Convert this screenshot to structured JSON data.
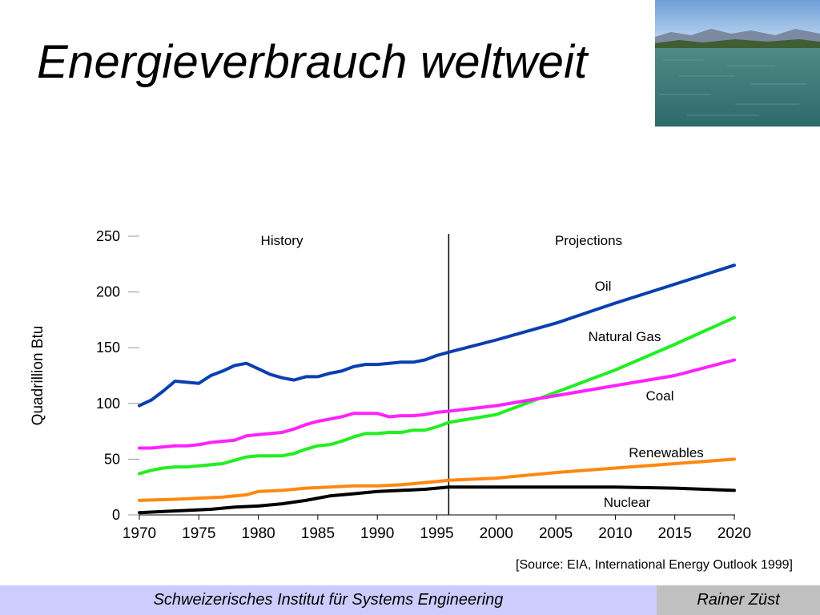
{
  "slide": {
    "title": "Energieverbrauch weltweit"
  },
  "photo": {
    "icon": "lake-landscape-photo"
  },
  "source": "[Source:  EIA, International Energy Outlook 1999]",
  "footer": {
    "left": "Schweizerisches Institut für Systems Engineering",
    "right": "Rainer Züst"
  },
  "chart_data": {
    "type": "line",
    "title": "",
    "xlabel": "",
    "ylabel": "Quadrillion Btu",
    "xlim": [
      1970,
      2020
    ],
    "ylim": [
      0,
      250
    ],
    "x_ticks": [
      1970,
      1975,
      1980,
      1985,
      1990,
      1995,
      2000,
      2005,
      2010,
      2015,
      2020
    ],
    "y_ticks": [
      0,
      50,
      100,
      150,
      200,
      250
    ],
    "grid": false,
    "divider_year": 1996,
    "region_labels": {
      "history": "History",
      "projections": "Projections"
    },
    "series": [
      {
        "name": "Oil",
        "color": "#0a3fb0",
        "x": [
          1970,
          1971,
          1972,
          1973,
          1974,
          1975,
          1976,
          1977,
          1978,
          1979,
          1980,
          1981,
          1982,
          1983,
          1984,
          1985,
          1986,
          1987,
          1988,
          1989,
          1990,
          1991,
          1992,
          1993,
          1994,
          1995,
          1996,
          2000,
          2005,
          2010,
          2015,
          2020
        ],
        "y": [
          98,
          103,
          111,
          120,
          119,
          118,
          125,
          129,
          134,
          136,
          131,
          126,
          123,
          121,
          124,
          124,
          127,
          129,
          133,
          135,
          135,
          136,
          137,
          137,
          139,
          143,
          146,
          157,
          172,
          190,
          207,
          224
        ]
      },
      {
        "name": "Natural Gas",
        "color": "#22ee22",
        "x": [
          1970,
          1971,
          1972,
          1973,
          1974,
          1975,
          1976,
          1977,
          1978,
          1979,
          1980,
          1981,
          1982,
          1983,
          1984,
          1985,
          1986,
          1987,
          1988,
          1989,
          1990,
          1991,
          1992,
          1993,
          1994,
          1995,
          1996,
          2000,
          2005,
          2010,
          2015,
          2020
        ],
        "y": [
          37,
          40,
          42,
          43,
          43,
          44,
          45,
          46,
          49,
          52,
          53,
          53,
          53,
          55,
          59,
          62,
          63,
          66,
          70,
          73,
          73,
          74,
          74,
          76,
          76,
          79,
          83,
          90,
          110,
          130,
          153,
          177
        ]
      },
      {
        "name": "Coal",
        "color": "#ff22ff",
        "x": [
          1970,
          1971,
          1972,
          1973,
          1974,
          1975,
          1976,
          1977,
          1978,
          1979,
          1980,
          1981,
          1982,
          1983,
          1984,
          1985,
          1986,
          1987,
          1988,
          1989,
          1990,
          1991,
          1992,
          1993,
          1994,
          1995,
          1996,
          2000,
          2005,
          2010,
          2015,
          2020
        ],
        "y": [
          60,
          60,
          61,
          62,
          62,
          63,
          65,
          66,
          67,
          71,
          72,
          73,
          74,
          77,
          81,
          84,
          86,
          88,
          91,
          91,
          91,
          88,
          89,
          89,
          90,
          92,
          93,
          98,
          107,
          116,
          125,
          139
        ]
      },
      {
        "name": "Renewables",
        "color": "#ff8811",
        "x": [
          1970,
          1973,
          1975,
          1977,
          1979,
          1980,
          1982,
          1984,
          1986,
          1988,
          1990,
          1992,
          1995,
          1996,
          2000,
          2005,
          2010,
          2015,
          2020
        ],
        "y": [
          13,
          14,
          15,
          16,
          18,
          21,
          22,
          24,
          25,
          26,
          26,
          27,
          30,
          31,
          33,
          38,
          42,
          46,
          50
        ]
      },
      {
        "name": "Nuclear",
        "color": "#000000",
        "x": [
          1970,
          1972,
          1974,
          1976,
          1978,
          1980,
          1982,
          1984,
          1986,
          1988,
          1990,
          1992,
          1994,
          1996,
          2000,
          2005,
          2010,
          2015,
          2020
        ],
        "y": [
          2,
          3,
          4,
          5,
          7,
          8,
          10,
          13,
          17,
          19,
          21,
          22,
          23,
          25,
          25,
          25,
          25,
          24,
          22
        ]
      }
    ]
  }
}
